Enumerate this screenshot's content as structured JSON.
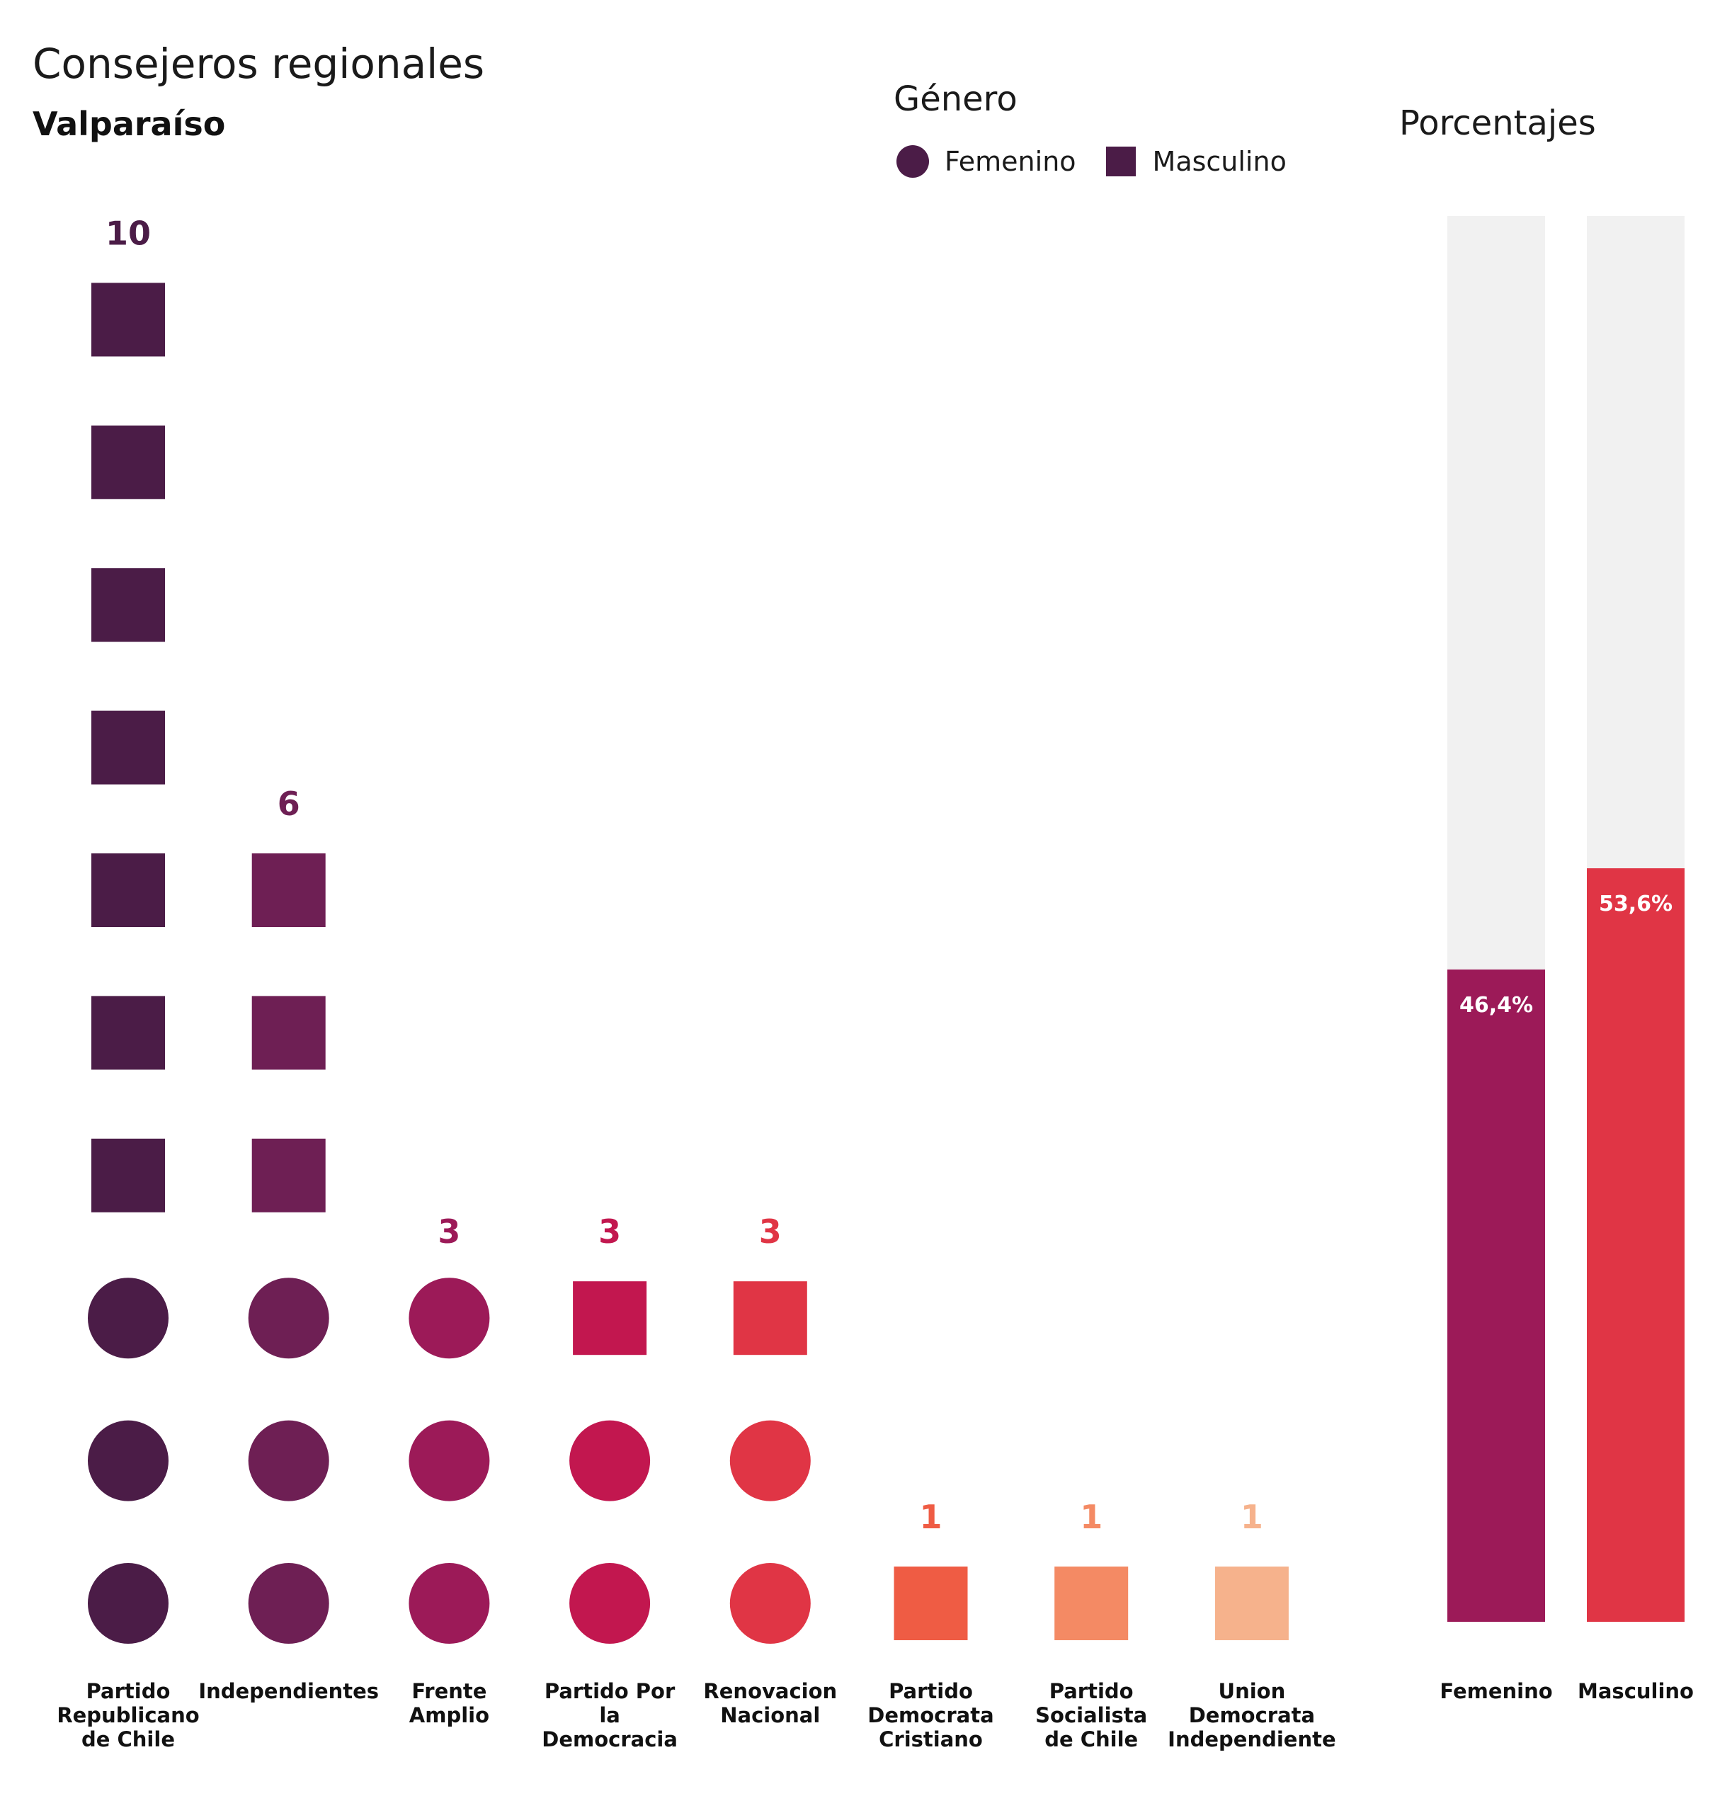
{
  "header": {
    "title": "Consejeros regionales",
    "subtitle": "Valparaíso"
  },
  "legend": {
    "title": "Género",
    "items": [
      {
        "label": "Femenino",
        "shape": "circle"
      },
      {
        "label": "Masculino",
        "shape": "square"
      }
    ],
    "color": "#4b1c47"
  },
  "percent_panel": {
    "title": "Porcentajes"
  },
  "chart_data": [
    {
      "type": "unit",
      "title": "Consejeros regionales",
      "subtitle": "Valparaíso",
      "categories": [
        "Partido Republicano de Chile",
        "Independientes",
        "Frente Amplio",
        "Partido Por la Democracia",
        "Renovacion Nacional",
        "Partido Democrata Cristiano",
        "Partido Socialista de Chile",
        "Union Democrata Independiente"
      ],
      "series": [
        {
          "name": "Femenino",
          "shape": "circle",
          "values": [
            3,
            3,
            3,
            2,
            2,
            0,
            0,
            0
          ]
        },
        {
          "name": "Masculino",
          "shape": "square",
          "values": [
            7,
            3,
            0,
            1,
            1,
            1,
            1,
            1
          ]
        }
      ],
      "totals": [
        10,
        6,
        3,
        3,
        3,
        1,
        1,
        1
      ],
      "colors": [
        "#4b1c47",
        "#6e1f54",
        "#9c1a58",
        "#c2174f",
        "#e03545",
        "#ef5c44",
        "#f48a64",
        "#f6b28c"
      ]
    },
    {
      "type": "bar",
      "title": "Porcentajes",
      "categories": [
        "Femenino",
        "Masculino"
      ],
      "values": [
        46.4,
        53.6
      ],
      "labels": [
        "46,4%",
        "53,6%"
      ],
      "ylim": [
        0,
        100
      ],
      "colors": [
        "#9c1a58",
        "#e03545"
      ],
      "track_color": "#f1f1f1"
    }
  ]
}
